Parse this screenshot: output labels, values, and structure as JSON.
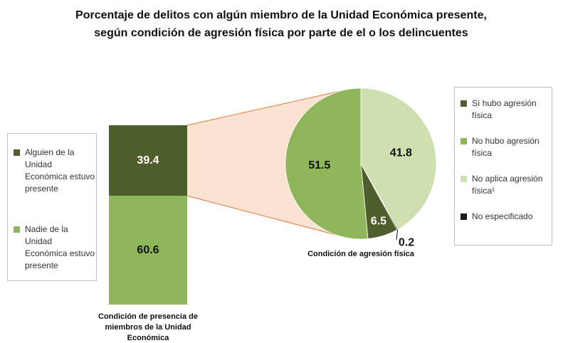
{
  "title": [
    "Porcentaje de delitos con algún miembro de la Unidad Económica presente,",
    "según condición de agresión física por parte de el o los delincuentes"
  ],
  "chart_data": [
    {
      "type": "stacked-bar",
      "xlabel": "Condición de presencia de miembros de la Unidad Económica",
      "ylim": [
        0,
        100
      ],
      "series": [
        {
          "name": "Alguien de la Unidad Económica estuvo presente",
          "color": "#4f5f2b",
          "values": [
            39.4
          ]
        },
        {
          "name": "Nadie de la Unidad Económica estuvo presente",
          "color": "#8fb65a",
          "values": [
            60.6
          ]
        }
      ]
    },
    {
      "type": "pie",
      "xlabel": "Condición de agresión física",
      "categories": [
        "Sí hubo agresión física",
        "No hubo agresión física",
        "No aplica agresión física¹",
        "No especificado"
      ],
      "values": [
        6.5,
        51.5,
        41.8,
        0.2
      ],
      "colors": [
        "#4f5f2b",
        "#8fb65a",
        "#cfe0b0",
        "#1a1a1a"
      ]
    }
  ]
}
